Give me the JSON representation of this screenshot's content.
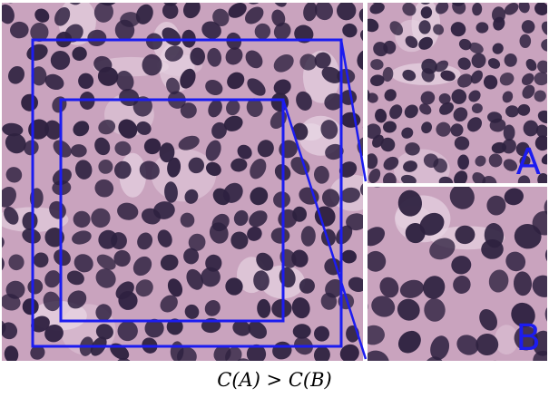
{
  "colors": {
    "box": "#1c1cf0",
    "label": "#1c1cf0",
    "tissue_background": "#c9a3be",
    "nucleus": "#2e2140",
    "stroma": "#e8d6e4"
  },
  "insets": {
    "a": {
      "label": "A"
    },
    "b": {
      "label": "B"
    }
  },
  "caption": "C(A) > C(B)"
}
